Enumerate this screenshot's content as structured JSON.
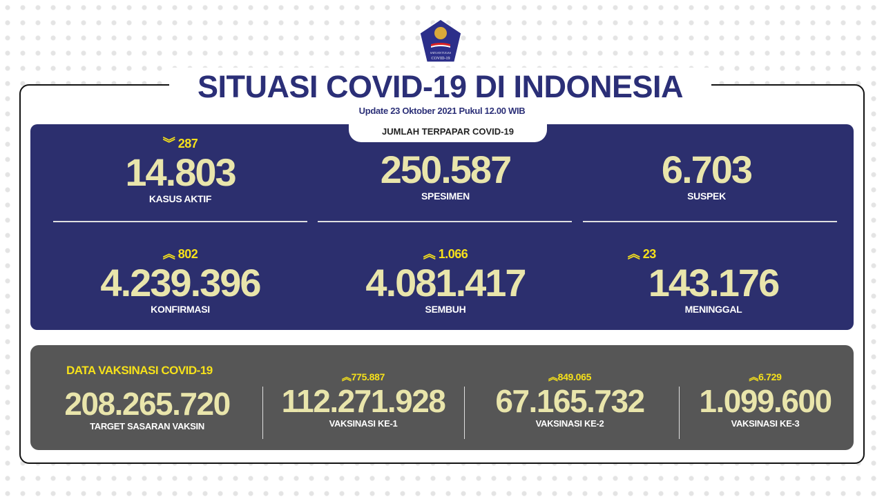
{
  "logo": {
    "text": "SATUAN TUGAS PENANGANAN COVID-19"
  },
  "header": {
    "title": "SITUASI COVID-19 DI INDONESIA",
    "update": "Update 23 Oktober 2021 Pukul 12.00 WIB"
  },
  "exposed": {
    "tab": "JUMLAH TERPAPAR COVID-19",
    "stats": [
      {
        "label": "KASUS AKTIF",
        "value": "14.803",
        "delta": "287",
        "direction": "down"
      },
      {
        "label": "SPESIMEN",
        "value": "250.587"
      },
      {
        "label": "SUSPEK",
        "value": "6.703"
      },
      {
        "label": "KONFIRMASI",
        "value": "4.239.396",
        "delta": "802",
        "direction": "up"
      },
      {
        "label": "SEMBUH",
        "value": "4.081.417",
        "delta": "1.066",
        "direction": "up"
      },
      {
        "label": "MENINGGAL",
        "value": "143.176",
        "delta": "23",
        "direction": "up"
      }
    ]
  },
  "vaccination": {
    "title": "DATA VAKSINASI COVID-19",
    "stats": [
      {
        "label": "TARGET SASARAN VAKSIN",
        "value": "208.265.720"
      },
      {
        "label": "VAKSINASI KE-1",
        "value": "112.271.928",
        "delta": "775.887",
        "direction": "up"
      },
      {
        "label": "VAKSINASI KE-2",
        "value": "67.165.732",
        "delta": "849.065",
        "direction": "up"
      },
      {
        "label": "VAKSINASI KE-3",
        "value": "1.099.600",
        "delta": "6.729",
        "direction": "up"
      }
    ]
  },
  "colors": {
    "navy": "#2c2f6e",
    "title": "#2b2f77",
    "gray": "#565656",
    "number": "#e9e5ab",
    "accent": "#f6e11a"
  },
  "icons": {
    "up": "double-chevron-up",
    "down": "double-chevron-down"
  }
}
